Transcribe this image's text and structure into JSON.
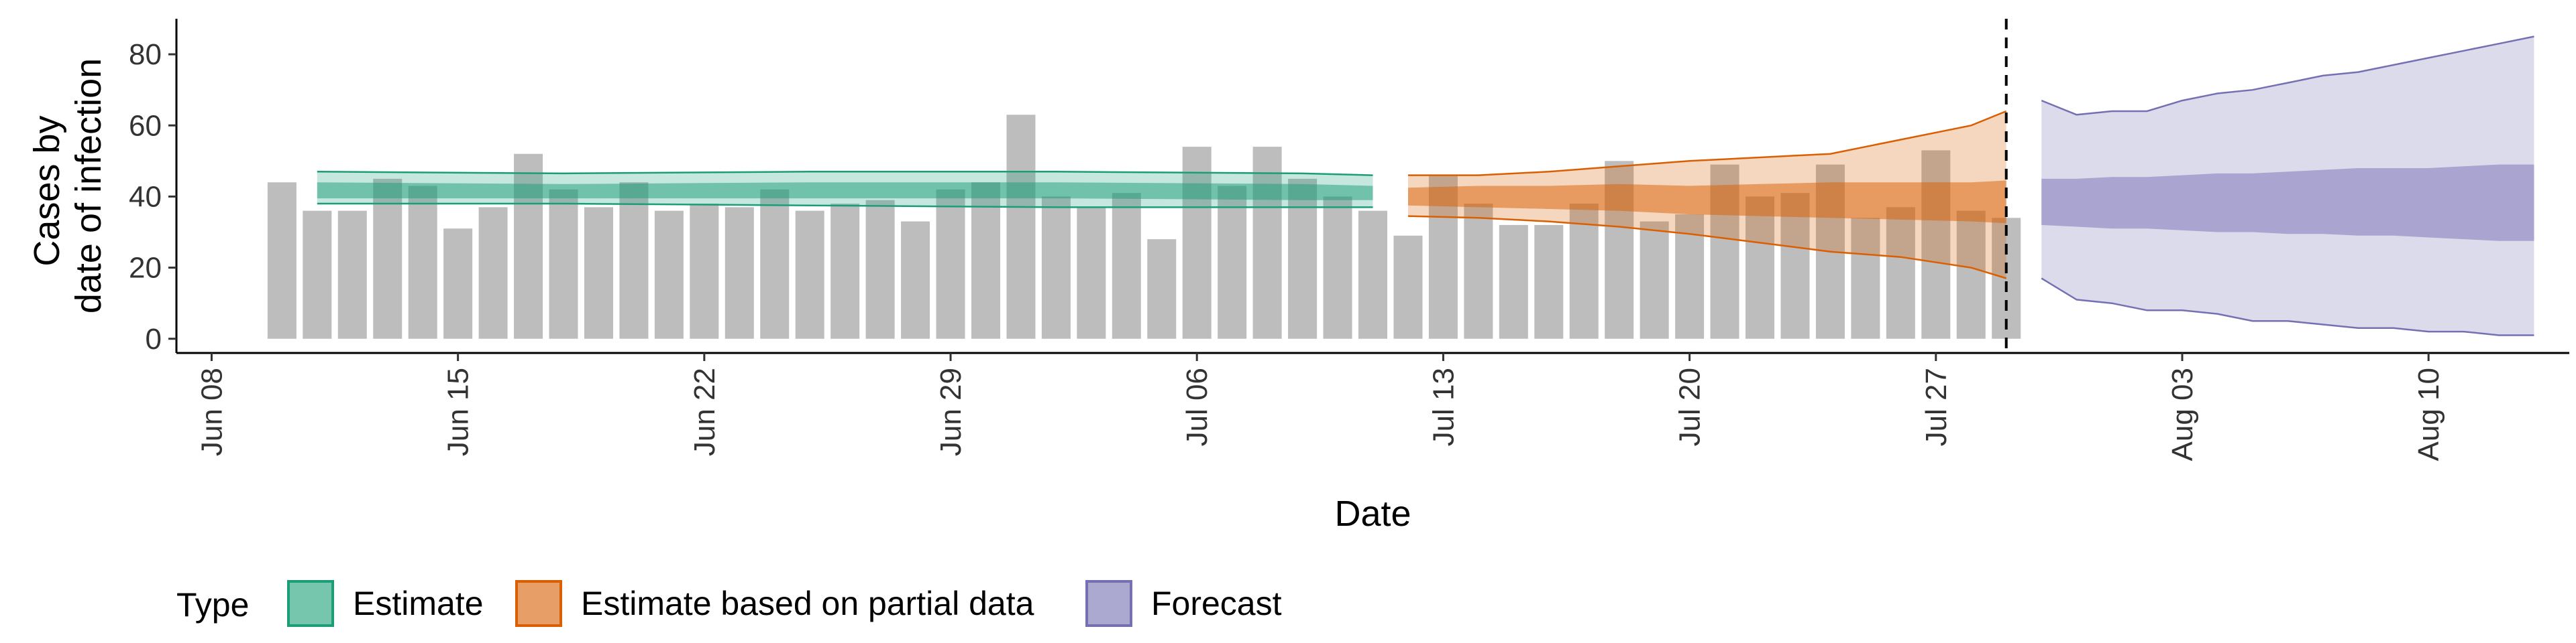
{
  "chart_data": {
    "type": "area",
    "xlabel": "Date",
    "ylabel_lines": [
      "Cases by",
      "date of infection"
    ],
    "y_ticks": [
      0,
      20,
      40,
      60,
      80
    ],
    "x_ticks": [
      "2020-06-08",
      "2020-06-15",
      "2020-06-22",
      "2020-06-29",
      "2020-07-06",
      "2020-07-13",
      "2020-07-20",
      "2020-07-27",
      "2020-08-03",
      "2020-08-10"
    ],
    "x_tick_labels": [
      "Jun 08",
      "Jun 15",
      "Jun 22",
      "Jun 29",
      "Jul 06",
      "Jul 13",
      "Jul 20",
      "Jul 27",
      "Aug 03",
      "Aug 10"
    ],
    "xlim": [
      "2020-06-07",
      "2020-08-14"
    ],
    "ylim": [
      -4,
      90
    ],
    "forecast_date": "2020-07-29",
    "bars": {
      "dates": [
        "2020-06-10",
        "2020-06-11",
        "2020-06-12",
        "2020-06-13",
        "2020-06-14",
        "2020-06-15",
        "2020-06-16",
        "2020-06-17",
        "2020-06-18",
        "2020-06-19",
        "2020-06-20",
        "2020-06-21",
        "2020-06-22",
        "2020-06-23",
        "2020-06-24",
        "2020-06-25",
        "2020-06-26",
        "2020-06-27",
        "2020-06-28",
        "2020-06-29",
        "2020-06-30",
        "2020-07-01",
        "2020-07-02",
        "2020-07-03",
        "2020-07-04",
        "2020-07-05",
        "2020-07-06",
        "2020-07-07",
        "2020-07-08",
        "2020-07-09",
        "2020-07-10",
        "2020-07-11",
        "2020-07-12",
        "2020-07-13",
        "2020-07-14",
        "2020-07-15",
        "2020-07-16",
        "2020-07-17",
        "2020-07-18",
        "2020-07-19",
        "2020-07-20",
        "2020-07-21",
        "2020-07-22",
        "2020-07-23",
        "2020-07-24",
        "2020-07-25",
        "2020-07-26",
        "2020-07-27",
        "2020-07-28",
        "2020-07-29"
      ],
      "values": [
        44,
        36,
        36,
        45,
        43,
        31,
        37,
        52,
        42,
        37,
        44,
        36,
        38,
        37,
        42,
        36,
        38,
        39,
        33,
        42,
        44,
        63,
        40,
        37,
        41,
        28,
        54,
        43,
        54,
        45,
        40,
        36,
        29,
        46,
        38,
        32,
        32,
        38,
        50,
        33,
        35,
        49,
        40,
        41,
        49,
        34,
        37,
        53,
        36,
        34
      ]
    },
    "series": [
      {
        "name": "Estimate",
        "color": "#1b9e77",
        "x": [
          "2020-06-11",
          "2020-06-18",
          "2020-06-25",
          "2020-07-02",
          "2020-07-09",
          "2020-07-11"
        ],
        "lower_90": [
          38,
          38,
          37.5,
          37,
          37,
          37
        ],
        "upper_90": [
          47,
          46.5,
          47,
          47,
          46.5,
          46
        ],
        "lower_50": [
          39.5,
          39.5,
          39.5,
          39.5,
          39,
          39
        ],
        "upper_50": [
          44,
          43.5,
          44,
          44,
          43.5,
          43
        ]
      },
      {
        "name": "Estimate based on partial data",
        "color": "#d95f02",
        "x": [
          "2020-07-12",
          "2020-07-14",
          "2020-07-16",
          "2020-07-18",
          "2020-07-20",
          "2020-07-22",
          "2020-07-24",
          "2020-07-26",
          "2020-07-28",
          "2020-07-29"
        ],
        "lower_90": [
          34.5,
          34,
          33,
          31.5,
          29.5,
          27,
          24.5,
          23,
          20,
          17
        ],
        "upper_90": [
          46,
          46,
          47,
          48.5,
          50,
          51,
          52,
          56,
          60,
          64
        ],
        "lower_50": [
          37.5,
          37,
          36.5,
          36,
          35,
          34.5,
          34,
          33.5,
          33,
          32.5
        ],
        "upper_50": [
          42.5,
          43,
          43,
          43.5,
          43,
          43.5,
          44,
          44,
          44,
          44.5
        ]
      },
      {
        "name": "Forecast",
        "color": "#7570b3",
        "x": [
          "2020-07-30",
          "2020-07-31",
          "2020-08-01",
          "2020-08-02",
          "2020-08-03",
          "2020-08-04",
          "2020-08-05",
          "2020-08-06",
          "2020-08-07",
          "2020-08-08",
          "2020-08-09",
          "2020-08-10",
          "2020-08-11",
          "2020-08-12",
          "2020-08-13"
        ],
        "lower_90": [
          17,
          11,
          10,
          8,
          8,
          7,
          5,
          5,
          4,
          3,
          3,
          2,
          2,
          1,
          1
        ],
        "upper_90": [
          67,
          63,
          64,
          64,
          67,
          69,
          70,
          72,
          74,
          75,
          77,
          79,
          81,
          83,
          85
        ],
        "lower_50": [
          32,
          31.5,
          31,
          31,
          30.5,
          30,
          30,
          29.5,
          29.5,
          29,
          29,
          28.5,
          28,
          27.5,
          27.5
        ],
        "upper_50": [
          45,
          45,
          45.5,
          45.5,
          46,
          46.5,
          46.5,
          47,
          47.5,
          48,
          48,
          48,
          48.5,
          49,
          49
        ]
      }
    ],
    "legend": {
      "title": "Type",
      "position": "bottom",
      "items": [
        "Estimate",
        "Estimate based on partial data",
        "Forecast"
      ]
    }
  }
}
